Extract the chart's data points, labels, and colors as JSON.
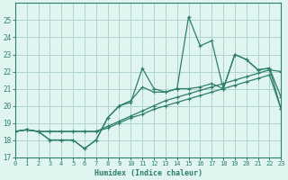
{
  "xlabel": "Humidex (Indice chaleur)",
  "x": [
    0,
    1,
    2,
    3,
    4,
    5,
    6,
    7,
    8,
    9,
    10,
    11,
    12,
    13,
    14,
    15,
    16,
    17,
    18,
    19,
    20,
    21,
    22,
    23
  ],
  "line1": [
    18.5,
    18.6,
    18.5,
    18.0,
    18.0,
    18.0,
    17.5,
    18.0,
    19.3,
    20.0,
    20.2,
    22.2,
    21.0,
    20.8,
    21.0,
    25.2,
    23.5,
    23.8,
    21.0,
    23.0,
    22.7,
    22.1,
    22.2,
    20.5
  ],
  "line2": [
    18.5,
    18.6,
    18.5,
    18.0,
    18.0,
    18.0,
    17.5,
    18.0,
    19.3,
    20.0,
    20.3,
    21.1,
    20.8,
    20.8,
    21.0,
    21.0,
    21.1,
    21.3,
    21.0,
    23.0,
    22.7,
    22.1,
    22.2,
    19.8
  ],
  "line3": [
    18.5,
    18.6,
    18.5,
    18.5,
    18.5,
    18.5,
    18.5,
    18.5,
    18.8,
    19.1,
    19.4,
    19.7,
    20.0,
    20.3,
    20.5,
    20.7,
    20.9,
    21.1,
    21.3,
    21.5,
    21.7,
    21.9,
    22.1,
    22.0
  ],
  "line4": [
    18.5,
    18.6,
    18.5,
    18.5,
    18.5,
    18.5,
    18.5,
    18.5,
    18.7,
    19.0,
    19.3,
    19.5,
    19.8,
    20.0,
    20.2,
    20.4,
    20.6,
    20.8,
    21.0,
    21.2,
    21.4,
    21.6,
    21.8,
    19.8
  ],
  "line_color": "#2e7d6d",
  "bg_color": "#e0f5f0",
  "grid_color": "#aed4cc",
  "tick_color": "#2e7d6d",
  "axis_color": "#2e7d6d",
  "ylim": [
    17,
    26
  ],
  "yticks": [
    17,
    18,
    19,
    20,
    21,
    22,
    23,
    24,
    25
  ],
  "xlim": [
    0,
    23
  ],
  "xticks": [
    0,
    1,
    2,
    3,
    4,
    5,
    6,
    7,
    8,
    9,
    10,
    11,
    12,
    13,
    14,
    15,
    16,
    17,
    18,
    19,
    20,
    21,
    22,
    23
  ]
}
